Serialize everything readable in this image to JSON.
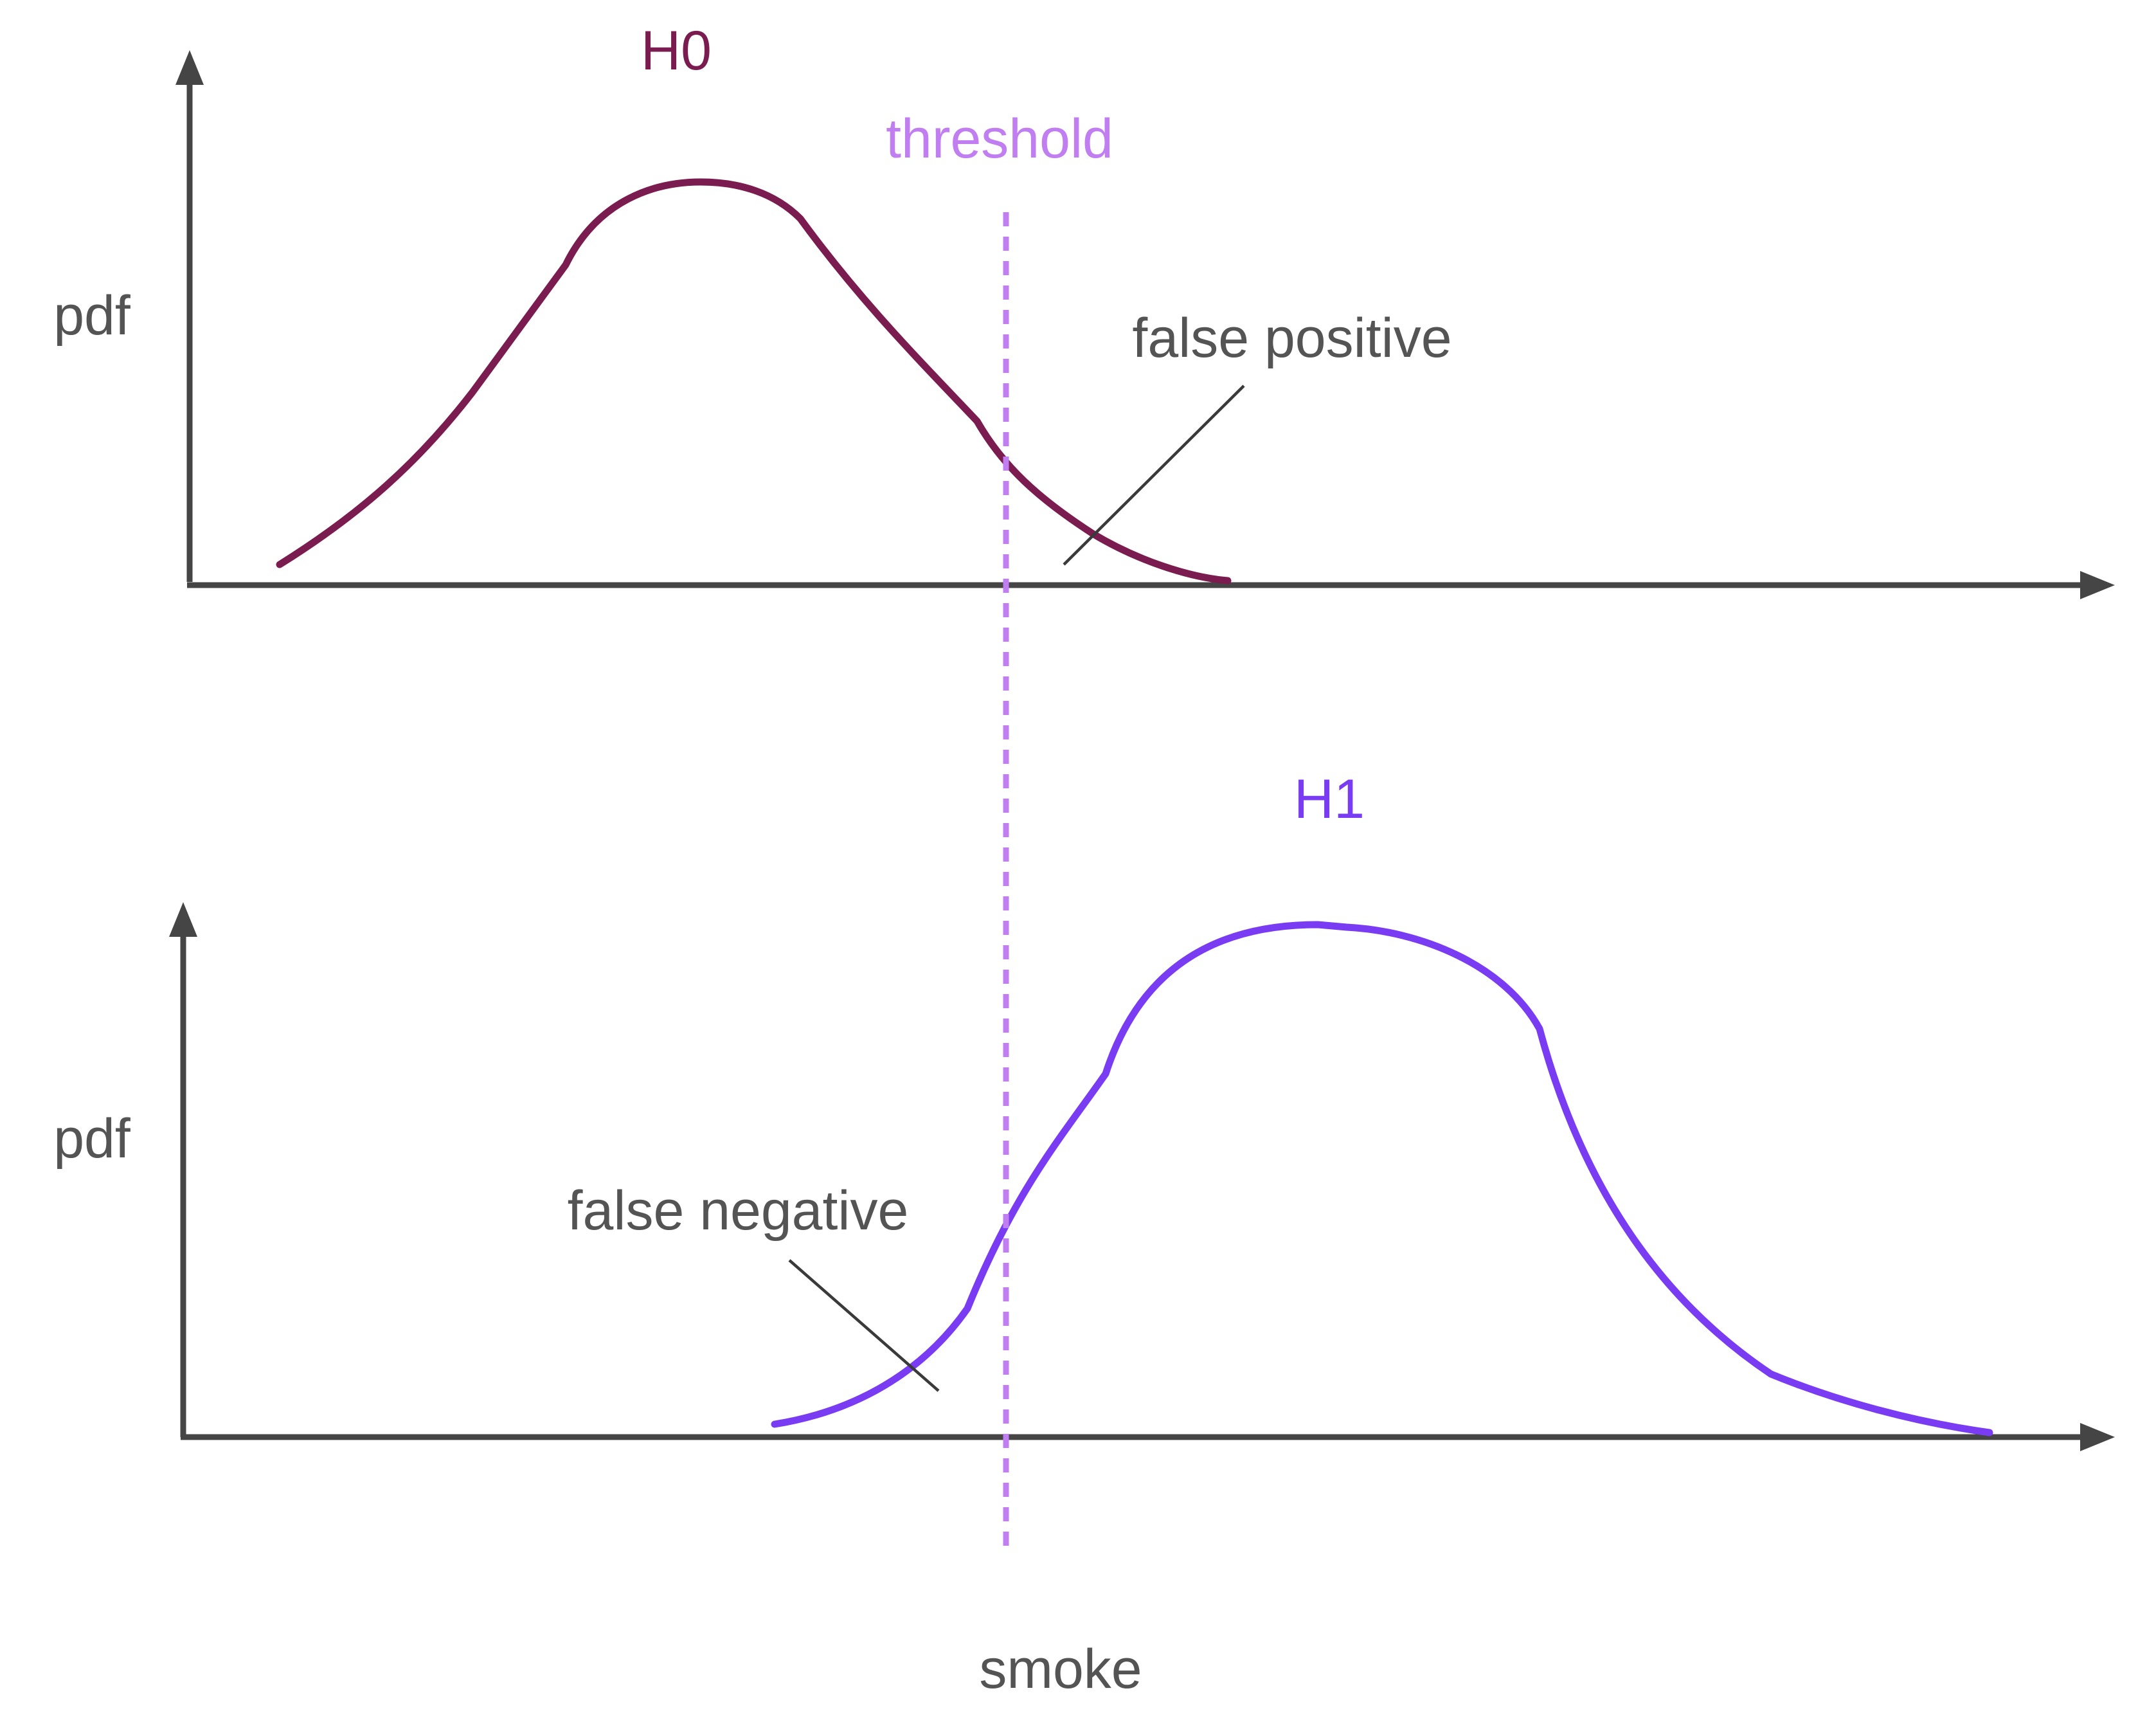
{
  "colors": {
    "axis": "#454545",
    "text": "#545454",
    "h0": "#7A1C4F",
    "h1": "#7A3CF2",
    "threshold": "#C07EF0",
    "pointer": "#3a3a3a"
  },
  "top_panel": {
    "y_label": "pdf",
    "curve_label": "H0",
    "annotation": "false positive"
  },
  "bottom_panel": {
    "y_label": "pdf",
    "curve_label": "H1",
    "annotation": "false negative"
  },
  "threshold_label": "threshold",
  "x_label": "smoke"
}
